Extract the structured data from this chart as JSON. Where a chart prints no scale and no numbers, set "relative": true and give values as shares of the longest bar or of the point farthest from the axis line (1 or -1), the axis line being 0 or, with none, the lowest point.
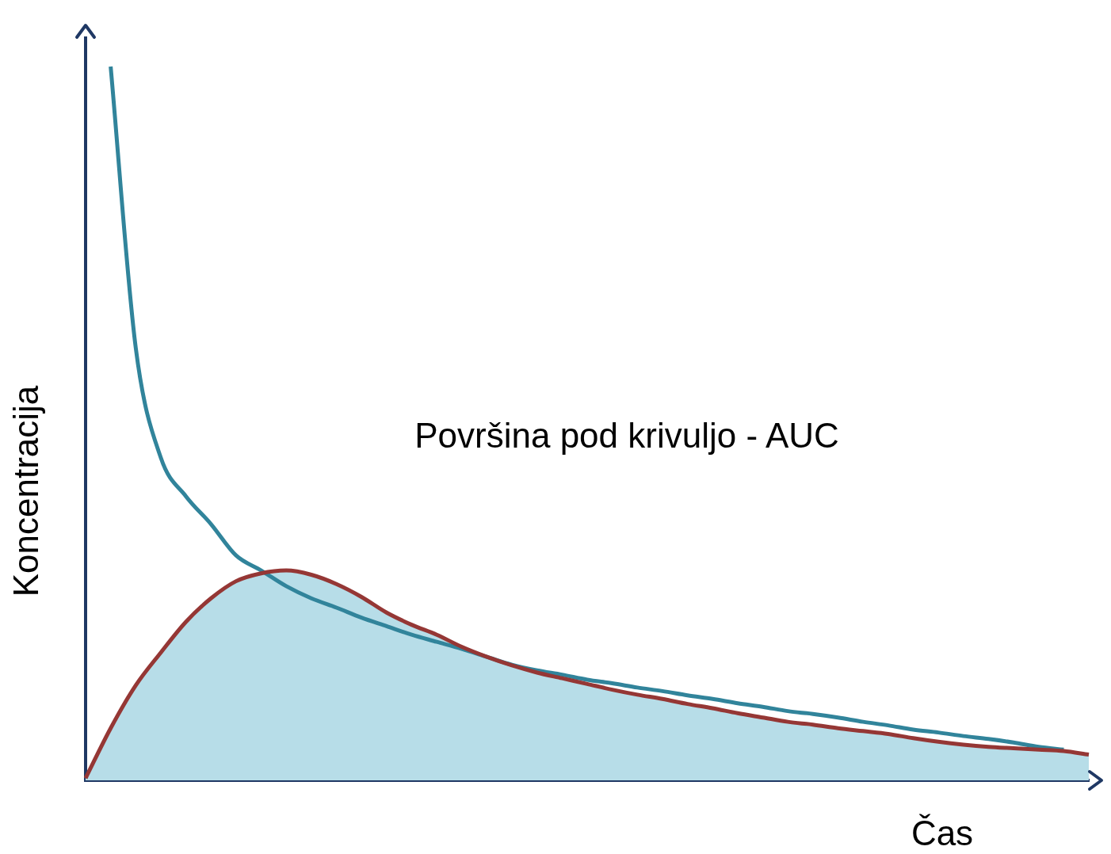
{
  "chart_data": {
    "type": "line",
    "relative": true,
    "xlabel": "Čas",
    "ylabel": "Koncentracija",
    "annotations": [
      "Površina pod krivuljo - AUC"
    ],
    "legend": false,
    "grid": false,
    "marker": "none",
    "categories": [
      null,
      null,
      null,
      null,
      null,
      null,
      null,
      null,
      null,
      null,
      null,
      null,
      null,
      null,
      null,
      null,
      null,
      null,
      null,
      null,
      null,
      null,
      null,
      null,
      null,
      null,
      null,
      null,
      null,
      null,
      null,
      null,
      null,
      null,
      null,
      null,
      null,
      null,
      null,
      null,
      null
    ],
    "series": [
      {
        "type": "area",
        "color": "#b7dde8",
        "values": [
          0.003,
          0.073,
          0.133,
          0.179,
          0.222,
          0.255,
          0.279,
          0.29,
          0.294,
          0.288,
          0.275,
          0.257,
          0.235,
          0.218,
          0.204,
          0.187,
          0.173,
          0.161,
          0.151,
          0.143,
          0.135,
          0.127,
          0.12,
          0.114,
          0.107,
          0.101,
          0.094,
          0.088,
          0.082,
          0.078,
          0.073,
          0.069,
          0.065,
          0.059,
          0.054,
          0.05,
          0.047,
          0.045,
          0.043,
          0.041,
          0.036
        ]
      },
      {
        "type": "line",
        "color": "#953735",
        "values": [
          0.003,
          0.073,
          0.133,
          0.179,
          0.222,
          0.255,
          0.279,
          0.29,
          0.294,
          0.288,
          0.275,
          0.257,
          0.235,
          0.218,
          0.204,
          0.187,
          0.173,
          0.161,
          0.151,
          0.143,
          0.135,
          0.127,
          0.12,
          0.114,
          0.107,
          0.101,
          0.094,
          0.088,
          0.082,
          0.078,
          0.073,
          0.069,
          0.065,
          0.059,
          0.054,
          0.05,
          0.047,
          0.045,
          0.043,
          0.041,
          0.036
        ]
      },
      {
        "type": "line",
        "color": "#31849b",
        "values": [
          null,
          1.0,
          0.606,
          0.452,
          0.398,
          0.359,
          0.315,
          0.294,
          0.272,
          0.255,
          0.242,
          0.228,
          0.216,
          0.204,
          0.194,
          0.184,
          0.173,
          0.162,
          0.154,
          0.148,
          0.141,
          0.136,
          0.13,
          0.125,
          0.119,
          0.114,
          0.108,
          0.103,
          0.097,
          0.093,
          0.088,
          0.082,
          0.077,
          0.071,
          0.067,
          0.062,
          0.058,
          0.053,
          0.047,
          0.043,
          null
        ]
      }
    ]
  }
}
